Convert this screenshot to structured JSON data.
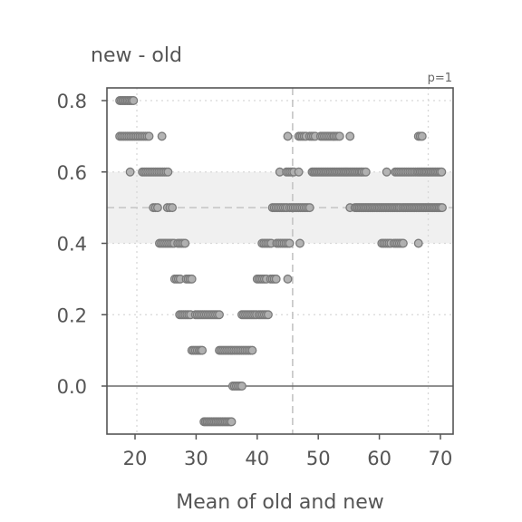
{
  "chart_data": {
    "type": "scatter",
    "title": "new - old",
    "xlabel": "Mean of old and new",
    "ylabel": "",
    "annotation": "p=1",
    "xlim": [
      15.5,
      72.0
    ],
    "ylim": [
      -0.135,
      0.835
    ],
    "x_ticks": [
      20,
      30,
      40,
      50,
      60,
      70
    ],
    "y_ticks": [
      0.0,
      0.2,
      0.4,
      0.6,
      0.8
    ],
    "x_tick_labels": [
      "20",
      "30",
      "40",
      "50",
      "60",
      "70"
    ],
    "y_tick_labels": [
      "0.0",
      "0.2",
      "0.4",
      "0.6",
      "0.8"
    ],
    "grid": true,
    "reference_lines": {
      "zero_line_y": 0.0,
      "mean_diff_y": 0.5,
      "band_y": [
        0.4,
        0.6
      ],
      "x_mean": 45.8,
      "x_low": 20.3,
      "x_high": 68.0
    },
    "colors": {
      "point_fill": "#b0b0b0",
      "point_edge": "#7a7a7a",
      "band": "#f0f0f0",
      "axis": "#555555"
    },
    "series": [
      {
        "clusters": [
          {
            "y": 0.8,
            "x_start": 17.5,
            "x_end": 19.9,
            "step": 0.25
          },
          {
            "y": 0.7,
            "x_start": 17.5,
            "x_end": 22.5,
            "step": 0.3
          },
          {
            "y": 0.7,
            "x_start": 24.4,
            "x_end": 24.4,
            "step": 1
          },
          {
            "y": 0.6,
            "x_start": 19.2,
            "x_end": 19.2,
            "step": 1
          },
          {
            "y": 0.6,
            "x_start": 21.2,
            "x_end": 25.4,
            "step": 0.3
          },
          {
            "y": 0.5,
            "x_start": 23.0,
            "x_end": 24.0,
            "step": 0.35
          },
          {
            "y": 0.5,
            "x_start": 25.3,
            "x_end": 26.1,
            "step": 0.4
          },
          {
            "y": 0.4,
            "x_start": 24.0,
            "x_end": 26.5,
            "step": 0.3
          },
          {
            "y": 0.4,
            "x_start": 27.0,
            "x_end": 28.2,
            "step": 0.3
          },
          {
            "y": 0.3,
            "x_start": 26.5,
            "x_end": 27.4,
            "step": 0.3
          },
          {
            "y": 0.3,
            "x_start": 28.4,
            "x_end": 29.4,
            "step": 0.3
          },
          {
            "y": 0.2,
            "x_start": 27.3,
            "x_end": 29.3,
            "step": 0.3
          },
          {
            "y": 0.2,
            "x_start": 29.9,
            "x_end": 34.0,
            "step": 0.3
          },
          {
            "y": 0.1,
            "x_start": 29.3,
            "x_end": 30.3,
            "step": 0.3
          },
          {
            "y": 0.1,
            "x_start": 30.5,
            "x_end": 31.0,
            "step": 0.25
          },
          {
            "y": 0.1,
            "x_start": 33.8,
            "x_end": 39.2,
            "step": 0.3
          },
          {
            "y": 0.0,
            "x_start": 36.0,
            "x_end": 37.6,
            "step": 0.3
          },
          {
            "y": -0.1,
            "x_start": 31.3,
            "x_end": 35.9,
            "step": 0.25
          },
          {
            "y": 0.2,
            "x_start": 37.5,
            "x_end": 39.9,
            "step": 0.3
          },
          {
            "y": 0.2,
            "x_start": 40.3,
            "x_end": 42.0,
            "step": 0.3
          },
          {
            "y": 0.3,
            "x_start": 40.0,
            "x_end": 41.6,
            "step": 0.3
          },
          {
            "y": 0.3,
            "x_start": 42.2,
            "x_end": 43.2,
            "step": 0.3
          },
          {
            "y": 0.3,
            "x_start": 45.0,
            "x_end": 45.0,
            "step": 1
          },
          {
            "y": 0.4,
            "x_start": 40.8,
            "x_end": 42.5,
            "step": 0.3
          },
          {
            "y": 0.4,
            "x_start": 43.2,
            "x_end": 45.5,
            "step": 0.3
          },
          {
            "y": 0.4,
            "x_start": 47.0,
            "x_end": 47.0,
            "step": 1
          },
          {
            "y": 0.5,
            "x_start": 42.5,
            "x_end": 45.0,
            "step": 0.3
          },
          {
            "y": 0.5,
            "x_start": 45.3,
            "x_end": 48.8,
            "step": 0.3
          },
          {
            "y": 0.6,
            "x_start": 43.7,
            "x_end": 43.7,
            "step": 1
          },
          {
            "y": 0.6,
            "x_start": 44.8,
            "x_end": 46.0,
            "step": 0.3
          },
          {
            "y": 0.6,
            "x_start": 46.8,
            "x_end": 46.8,
            "step": 1
          },
          {
            "y": 0.7,
            "x_start": 45.0,
            "x_end": 45.0,
            "step": 1
          },
          {
            "y": 0.7,
            "x_start": 46.8,
            "x_end": 48.0,
            "step": 0.3
          },
          {
            "y": 0.7,
            "x_start": 48.6,
            "x_end": 49.6,
            "step": 0.3
          },
          {
            "y": 0.7,
            "x_start": 50.4,
            "x_end": 52.5,
            "step": 0.3
          },
          {
            "y": 0.7,
            "x_start": 52.6,
            "x_end": 53.5,
            "step": 0.3
          },
          {
            "y": 0.7,
            "x_start": 55.2,
            "x_end": 55.2,
            "step": 1
          },
          {
            "y": 0.6,
            "x_start": 49.0,
            "x_end": 57.0,
            "step": 0.25
          },
          {
            "y": 0.6,
            "x_start": 57.2,
            "x_end": 57.8,
            "step": 0.3
          },
          {
            "y": 0.5,
            "x_start": 55.2,
            "x_end": 55.2,
            "step": 1
          },
          {
            "y": 0.5,
            "x_start": 56.0,
            "x_end": 63.5,
            "step": 0.25
          },
          {
            "y": 0.4,
            "x_start": 60.4,
            "x_end": 62.0,
            "step": 0.3
          },
          {
            "y": 0.4,
            "x_start": 62.4,
            "x_end": 64.1,
            "step": 0.3
          },
          {
            "y": 0.4,
            "x_start": 66.4,
            "x_end": 66.4,
            "step": 1
          },
          {
            "y": 0.6,
            "x_start": 61.2,
            "x_end": 61.2,
            "step": 1
          },
          {
            "y": 0.6,
            "x_start": 62.6,
            "x_end": 66.0,
            "step": 0.3
          },
          {
            "y": 0.6,
            "x_start": 66.2,
            "x_end": 70.3,
            "step": 0.25
          },
          {
            "y": 0.5,
            "x_start": 63.8,
            "x_end": 70.3,
            "step": 0.25
          },
          {
            "y": 0.7,
            "x_start": 66.4,
            "x_end": 67.2,
            "step": 0.3
          }
        ]
      }
    ]
  }
}
